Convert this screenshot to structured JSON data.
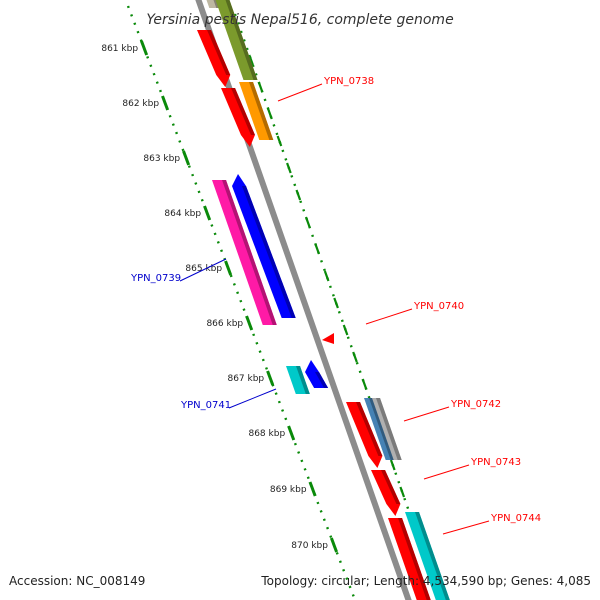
{
  "title": "Yersinia pestis Nepal516, complete genome",
  "footer": {
    "accession": "Accession: NC_008149",
    "summary": "Topology: circular; Length: 4,534,590 bp; Genes: 4,085"
  },
  "ticks": [
    "861 kbp",
    "862 kbp",
    "863 kbp",
    "864 kbp",
    "865 kbp",
    "866 kbp",
    "867 kbp",
    "868 kbp",
    "869 kbp",
    "870 kbp"
  ],
  "genes": [
    {
      "id": "g-top-grey",
      "color": "#bdb7a2"
    },
    {
      "id": "g-top-olive",
      "color": "#7b9a2c"
    },
    {
      "id": "g-top-red",
      "color": "#ff0000"
    },
    {
      "id": "YPN_0738",
      "color": "#ff0000",
      "label": "YPN_0738"
    },
    {
      "id": "g-orange",
      "color": "#ff9900"
    },
    {
      "id": "YPN_0739",
      "color": "#ff1aa6",
      "label": "YPN_0739"
    },
    {
      "id": "g-blue",
      "color": "#0000ff"
    },
    {
      "id": "YPN_0740",
      "color": "#ff0000",
      "label": "YPN_0740"
    },
    {
      "id": "YPN_0741",
      "color": "#00c9c9",
      "label": "YPN_0741"
    },
    {
      "id": "g-blue2",
      "color": "#0000ff"
    },
    {
      "id": "YPN_0742",
      "color": "#ff0000",
      "label": "YPN_0742"
    },
    {
      "id": "g-steel",
      "color": "#4682b4"
    },
    {
      "id": "g-lightgrey",
      "color": "#b0b0b0"
    },
    {
      "id": "YPN_0743",
      "color": "#ff0000",
      "label": "YPN_0743"
    },
    {
      "id": "YPN_0744",
      "color": "#ff0000",
      "label": "YPN_0744"
    },
    {
      "id": "g-cyan",
      "color": "#00c9c9"
    }
  ],
  "colors": {
    "backbone": "#8c8c8c",
    "tick": "#0a8a0a",
    "label_red": "#ff0000",
    "label_blue": "#0000cc"
  }
}
